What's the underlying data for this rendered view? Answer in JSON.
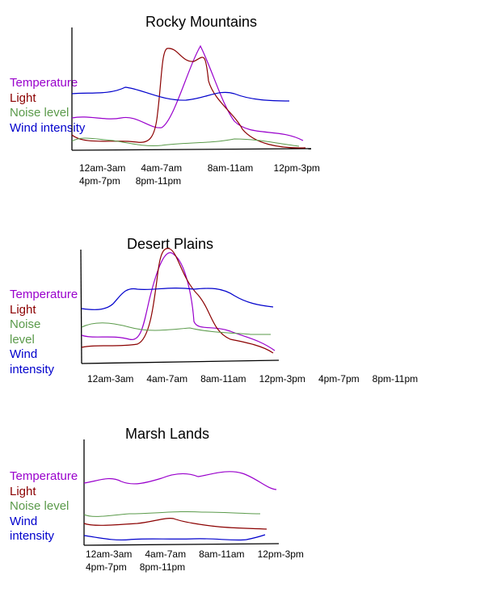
{
  "colors": {
    "temperature": "#9900cc",
    "light": "#8b0000",
    "noise": "#5a9a4a",
    "wind": "#0000cc",
    "axis": "#000000"
  },
  "chart_data": [
    {
      "type": "line",
      "title": "Rocky Mountains",
      "categories": [
        "12am-3am",
        "4am-7am",
        "8am-11am",
        "12pm-3pm",
        "4pm-7pm",
        "8pm-11pm"
      ],
      "legend": [
        "Temperature",
        "Light",
        "Noise level",
        "Wind intensity"
      ],
      "series": [
        {
          "name": "Temperature",
          "color_key": "temperature"
        },
        {
          "name": "Light",
          "color_key": "light"
        },
        {
          "name": "Noise level",
          "color_key": "noise"
        },
        {
          "name": "Wind intensity",
          "color_key": "wind"
        }
      ]
    },
    {
      "type": "line",
      "title": "Desert Plains",
      "categories": [
        "12am-3am",
        "4am-7am",
        "8am-11am",
        "12pm-3pm",
        "4pm-7pm",
        "8pm-11pm"
      ],
      "legend": [
        "Temperature",
        "Light",
        "Noise level",
        "Wind intensity"
      ],
      "series": [
        {
          "name": "Temperature",
          "color_key": "temperature"
        },
        {
          "name": "Light",
          "color_key": "light"
        },
        {
          "name": "Noise level",
          "color_key": "noise"
        },
        {
          "name": "Wind intensity",
          "color_key": "wind"
        }
      ]
    },
    {
      "type": "line",
      "title": "Marsh Lands",
      "categories": [
        "12am-3am",
        "4am-7am",
        "8am-11am",
        "12pm-3pm",
        "4pm-7pm",
        "8pm-11pm"
      ],
      "legend": [
        "Temperature",
        "Light",
        "Noise level",
        "Wind intensity"
      ],
      "series": [
        {
          "name": "Temperature",
          "color_key": "temperature"
        },
        {
          "name": "Light",
          "color_key": "light"
        },
        {
          "name": "Noise level",
          "color_key": "noise"
        },
        {
          "name": "Wind intensity",
          "color_key": "wind"
        }
      ]
    }
  ]
}
